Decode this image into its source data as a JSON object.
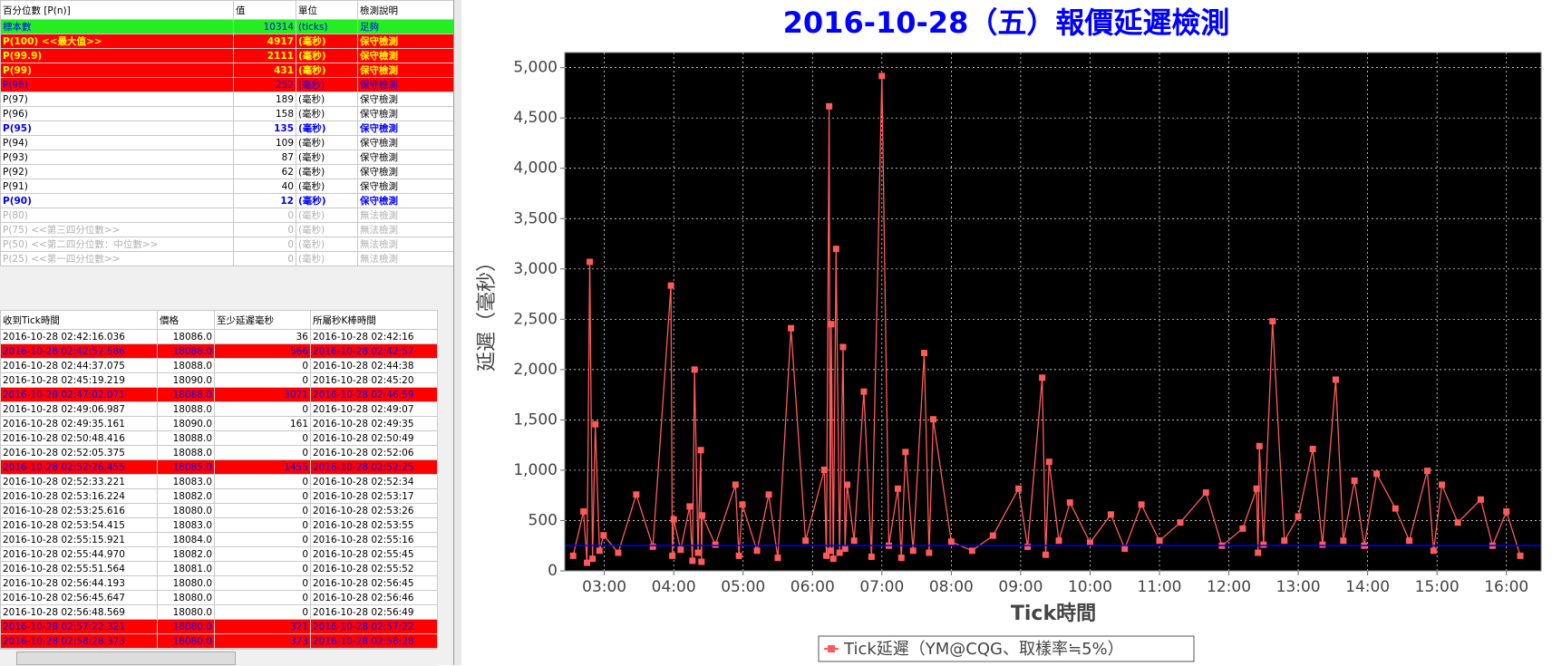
{
  "percentile_table": {
    "columns": [
      "百分位數 [P(n)]",
      "值",
      "單位",
      "檢測說明"
    ],
    "rows": [
      [
        "標本數",
        10314,
        "(ticks)",
        "足夠"
      ],
      [
        "P(100)  <<最大值>>",
        4917,
        "(毫秒)",
        "保守檢測"
      ],
      [
        "P(99.9)",
        2111,
        "(毫秒)",
        "保守檢測"
      ],
      [
        "P(99)",
        431,
        "(毫秒)",
        "保守檢測"
      ],
      [
        "P(98)",
        252,
        "(毫秒)",
        "保守檢測"
      ],
      [
        "P(97)",
        189,
        "(毫秒)",
        "保守檢測"
      ],
      [
        "P(96)",
        158,
        "(毫秒)",
        "保守檢測"
      ],
      [
        "P(95)",
        135,
        "(毫秒)",
        "保守檢測"
      ],
      [
        "P(94)",
        109,
        "(毫秒)",
        "保守檢測"
      ],
      [
        "P(93)",
        87,
        "(毫秒)",
        "保守檢測"
      ],
      [
        "P(92)",
        62,
        "(毫秒)",
        "保守檢測"
      ],
      [
        "P(91)",
        40,
        "(毫秒)",
        "保守檢測"
      ],
      [
        "P(90)",
        12,
        "(毫秒)",
        "保守檢測"
      ],
      [
        "P(80)",
        0,
        "(毫秒)",
        "無法檢測"
      ],
      [
        "P(75)  <<第三四分位數>>",
        0,
        "(毫秒)",
        "無法檢測"
      ],
      [
        "P(50)  <<第二四分位數：中位數>>",
        0,
        "(毫秒)",
        "無法檢測"
      ],
      [
        "P(25)  <<第一四分位數>>",
        0,
        "(毫秒)",
        "無法檢測"
      ]
    ],
    "row_styles": [
      "ok",
      "alert",
      "alert",
      "alert",
      "warn",
      "",
      "",
      "hi",
      "",
      "",
      "",
      "",
      "hi",
      "off",
      "off",
      "off",
      "off"
    ]
  },
  "tick_table": {
    "columns": [
      "收到Tick時間",
      "價格",
      "至少延遲毫秒",
      "所屬秒K棒時間"
    ],
    "rows": [
      [
        "2016-10-28 02:42:16.036",
        "18086.0",
        36,
        "2016-10-28 02:42:16"
      ],
      [
        "2016-10-28 02:42:57.586",
        "18088.0",
        566,
        "2016-10-28 02:42:57"
      ],
      [
        "2016-10-28 02:44:37.075",
        "18088.0",
        0,
        "2016-10-28 02:44:38"
      ],
      [
        "2016-10-28 02:45:19.219",
        "18090.0",
        0,
        "2016-10-28 02:45:20"
      ],
      [
        "2016-10-28 02:47:02.071",
        "18088.0",
        3071,
        "2016-10-28 02:46:59"
      ],
      [
        "2016-10-28 02:49:06.987",
        "18088.0",
        0,
        "2016-10-28 02:49:07"
      ],
      [
        "2016-10-28 02:49:35.161",
        "18090.0",
        161,
        "2016-10-28 02:49:35"
      ],
      [
        "2016-10-28 02:50:48.416",
        "18088.0",
        0,
        "2016-10-28 02:50:49"
      ],
      [
        "2016-10-28 02:52:05.375",
        "18088.0",
        0,
        "2016-10-28 02:52:06"
      ],
      [
        "2016-10-28 02:52:26.455",
        "18085.0",
        1455,
        "2016-10-28 02:52:25"
      ],
      [
        "2016-10-28 02:52:33.221",
        "18083.0",
        0,
        "2016-10-28 02:52:34"
      ],
      [
        "2016-10-28 02:53:16.224",
        "18082.0",
        0,
        "2016-10-28 02:53:17"
      ],
      [
        "2016-10-28 02:53:25.616",
        "18080.0",
        0,
        "2016-10-28 02:53:26"
      ],
      [
        "2016-10-28 02:53:54.415",
        "18083.0",
        0,
        "2016-10-28 02:53:55"
      ],
      [
        "2016-10-28 02:55:15.921",
        "18084.0",
        0,
        "2016-10-28 02:55:16"
      ],
      [
        "2016-10-28 02:55:44.970",
        "18082.0",
        0,
        "2016-10-28 02:55:45"
      ],
      [
        "2016-10-28 02:55:51.564",
        "18081.0",
        0,
        "2016-10-28 02:55:52"
      ],
      [
        "2016-10-28 02:56:44.193",
        "18080.0",
        0,
        "2016-10-28 02:56:45"
      ],
      [
        "2016-10-28 02:56:45.647",
        "18080.0",
        0,
        "2016-10-28 02:56:46"
      ],
      [
        "2016-10-28 02:56:48.569",
        "18080.0",
        0,
        "2016-10-28 02:56:49"
      ],
      [
        "2016-10-28 02:57:22.321",
        "18080.0",
        321,
        "2016-10-28 02:57:22"
      ],
      [
        "2016-10-28 02:58:28.373",
        "18080.0",
        373,
        "2016-10-28 02:58:28"
      ]
    ],
    "row_styles": [
      "",
      "red",
      "",
      "",
      "red",
      "",
      "",
      "",
      "",
      "red",
      "",
      "",
      "",
      "",
      "",
      "",
      "",
      "",
      "",
      "",
      "red",
      "red"
    ]
  },
  "chart_data": {
    "type": "line",
    "title": "2016-10-28（五）報價延遲檢測",
    "x_label": "Tick時間",
    "y_label": "延遲（毫秒）",
    "x": [
      2.55,
      2.7,
      2.75,
      2.79,
      2.83,
      2.87,
      2.93,
      2.99,
      3.2,
      3.46,
      3.7,
      3.96,
      3.98,
      4.0,
      4.1,
      4.23,
      4.27,
      4.3,
      4.35,
      4.39,
      4.4,
      4.41,
      4.6,
      4.89,
      4.94,
      4.99,
      5.2,
      5.37,
      5.5,
      5.69,
      5.9,
      6.17,
      6.2,
      6.24,
      6.255,
      6.27,
      6.3,
      6.34,
      6.39,
      6.44,
      6.47,
      6.5,
      6.6,
      6.74,
      6.85,
      7.0,
      7.1,
      7.23,
      7.28,
      7.34,
      7.45,
      7.61,
      7.68,
      7.74,
      8.0,
      8.3,
      8.6,
      8.97,
      9.1,
      9.31,
      9.36,
      9.41,
      9.55,
      9.71,
      10.0,
      10.3,
      10.5,
      10.74,
      11.0,
      11.3,
      11.67,
      11.9,
      12.2,
      12.4,
      12.42,
      12.44,
      12.5,
      12.63,
      12.8,
      13.0,
      13.21,
      13.35,
      13.54,
      13.65,
      13.81,
      13.95,
      14.13,
      14.4,
      14.6,
      14.86,
      14.95,
      15.07,
      15.3,
      15.63,
      15.8,
      16.0,
      16.2
    ],
    "series": [
      {
        "name": "Tick延遲（YM@CQG、取樣率≒5%）",
        "color": "#ff5a5a",
        "values": [
          150,
          590,
          80,
          3070,
          120,
          1457,
          200,
          354,
          180,
          758,
          240,
          2835,
          150,
          512,
          210,
          640,
          100,
          2000,
          180,
          1200,
          90,
          551,
          260,
          856,
          150,
          659,
          200,
          758,
          130,
          2411,
          300,
          1004,
          150,
          4616,
          200,
          2451,
          120,
          3199,
          180,
          2224,
          220,
          856,
          300,
          1781,
          140,
          4917,
          250,
          817,
          130,
          1181,
          200,
          2165,
          180,
          1506,
          290,
          200,
          350,
          817,
          240,
          1919,
          160,
          1083,
          300,
          679,
          280,
          560,
          220,
          659,
          300,
          480,
          778,
          250,
          420,
          817,
          180,
          1240,
          260,
          2480,
          300,
          540,
          1211,
          260,
          1900,
          300,
          896,
          250,
          965,
          620,
          300,
          994,
          200,
          856,
          480,
          709,
          250,
          590,
          150
        ]
      }
    ],
    "hline": {
      "value": 252,
      "color": "#0000ff"
    },
    "xlim": [
      2.43,
      16.5
    ],
    "ylim": [
      0,
      5150
    ],
    "xticks": [
      {
        "value": 3,
        "label": "03:00"
      },
      {
        "value": 4,
        "label": "04:00"
      },
      {
        "value": 5,
        "label": "05:00"
      },
      {
        "value": 6,
        "label": "06:00"
      },
      {
        "value": 7,
        "label": "07:00"
      },
      {
        "value": 8,
        "label": "08:00"
      },
      {
        "value": 9,
        "label": "09:00"
      },
      {
        "value": 10,
        "label": "10:00"
      },
      {
        "value": 11,
        "label": "11:00"
      },
      {
        "value": 12,
        "label": "12:00"
      },
      {
        "value": 13,
        "label": "13:00"
      },
      {
        "value": 14,
        "label": "14:00"
      },
      {
        "value": 15,
        "label": "15:00"
      },
      {
        "value": 16,
        "label": "16:00"
      }
    ],
    "yticks": [
      0,
      500,
      {
        "value": 1000,
        "label": "1,000"
      },
      {
        "value": 1500,
        "label": "1,500"
      },
      {
        "value": 2000,
        "label": "2,000"
      },
      {
        "value": 2500,
        "label": "2,500"
      },
      {
        "value": 3000,
        "label": "3,000"
      },
      {
        "value": 3500,
        "label": "3,500"
      },
      {
        "value": 4000,
        "label": "4,000"
      },
      {
        "value": 4500,
        "label": "4,500"
      },
      {
        "value": 5000,
        "label": "5,000"
      }
    ],
    "grid": true,
    "background": "#000000",
    "legend": "bottom"
  }
}
